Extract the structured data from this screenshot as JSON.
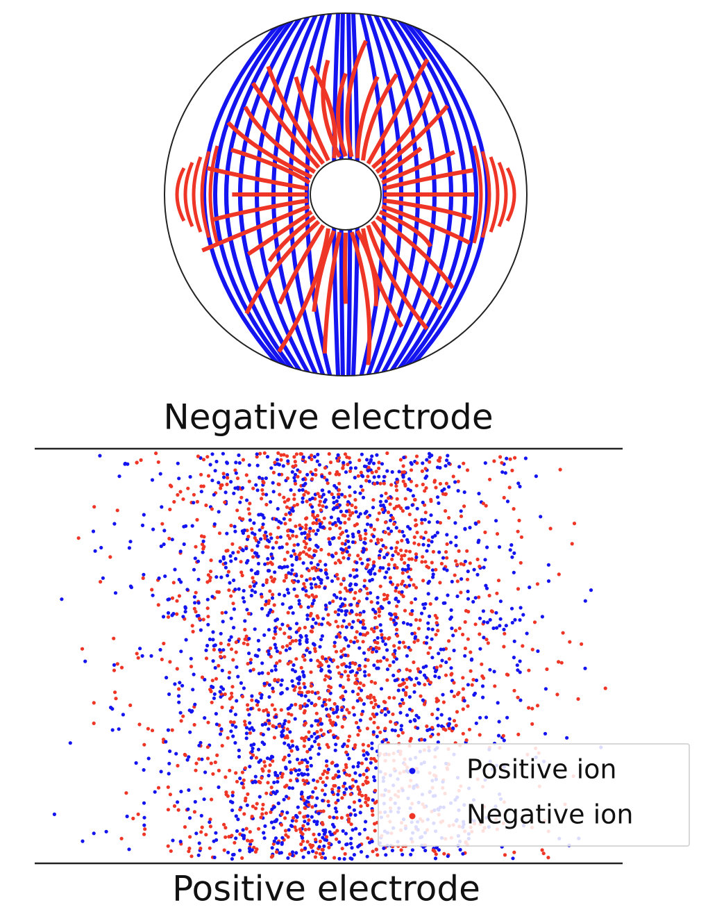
{
  "figure": {
    "top_label": "Negative electrode",
    "bottom_label": "Positive electrode",
    "legend": {
      "items": [
        {
          "label": "Positive ion",
          "color": "#1414f0"
        },
        {
          "label": "Negative ion",
          "color": "#ee3526"
        }
      ]
    }
  }
}
